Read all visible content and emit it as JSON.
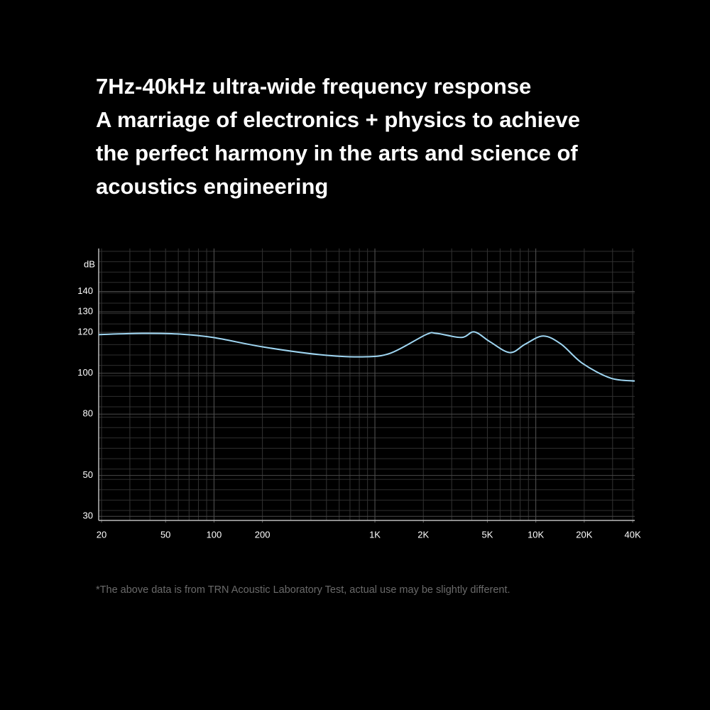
{
  "chart_data": {
    "type": "line",
    "title_lines": [
      "7Hz-40kHz ultra-wide frequency response",
      "A marriage of electronics + physics to achieve",
      "the perfect harmony in the arts and science of",
      "acoustics engineering"
    ],
    "y_label": "dB",
    "footnote": "*The above data is from TRN Acoustic Laboratory Test, actual use may be slightly different.",
    "log_x": true,
    "grid": true,
    "xlim": [
      19.2,
      41200
    ],
    "ylim": [
      28,
      161
    ],
    "xticks": [
      20,
      50,
      100,
      200,
      {
        "value": 1000,
        "label": "1K"
      },
      {
        "value": 2000,
        "label": "2K"
      },
      {
        "value": 5000,
        "label": "5K"
      },
      {
        "value": 10000,
        "label": "10K"
      },
      {
        "value": 20000,
        "label": "20K"
      },
      {
        "value": 40000,
        "label": "40K"
      }
    ],
    "yticks": [
      30,
      50,
      80,
      100,
      120,
      130,
      140
    ],
    "series": [
      {
        "color": "#9fd6f2",
        "x": [
          19.2,
          35.7,
          59.3,
          98.5,
          200,
          453,
          834,
          1250,
          2080,
          2410,
          3450,
          4150,
          5190,
          6900,
          8630,
          11120,
          14320,
          19440,
          29180,
          41200
        ],
        "values": [
          118.9,
          119.5,
          119.2,
          117.5,
          112.9,
          109.1,
          108,
          109.8,
          118.9,
          119.5,
          117.5,
          120.2,
          115.4,
          110.1,
          114.3,
          118.2,
          114.3,
          104.9,
          97.6,
          96.2
        ]
      }
    ]
  }
}
